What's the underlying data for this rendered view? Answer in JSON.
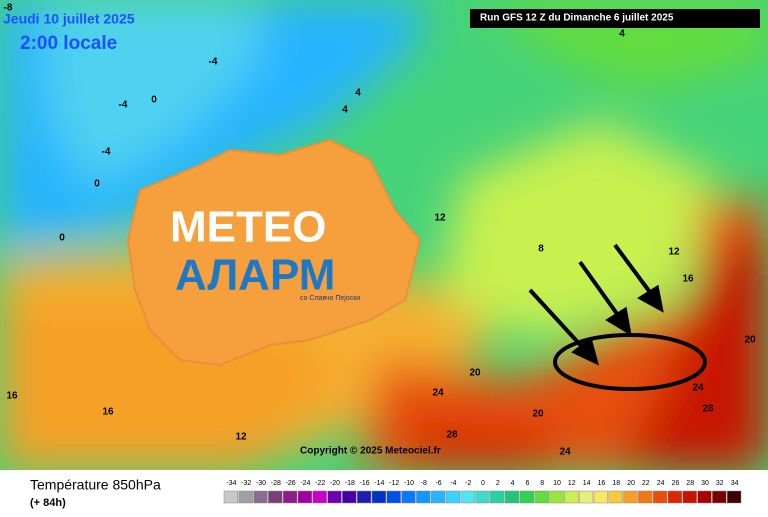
{
  "header": {
    "valid_date": "Jeudi 10 juillet 2025",
    "local_time": "2:00 locale",
    "run": "Run GFS 12 Z du Dimanche 6 juillet 2025"
  },
  "logo": {
    "line1": "METEO",
    "line2": "АЛАРМ",
    "tagline": "со Славчо Пејоски"
  },
  "copyright": "Copyright © 2025 Meteociel.fr",
  "legend": {
    "title": "Température 850hPa",
    "lead": "(+ 84h)",
    "ticks": [
      -34,
      -32,
      -30,
      -28,
      -26,
      -24,
      -22,
      -20,
      -18,
      -16,
      -14,
      -12,
      -10,
      -8,
      -6,
      -4,
      -2,
      0,
      2,
      4,
      6,
      8,
      10,
      12,
      14,
      16,
      18,
      20,
      22,
      24,
      26,
      28,
      30,
      32,
      34
    ],
    "colors": [
      "#c8c8c8",
      "#a0a0a0",
      "#8c6e8c",
      "#7a3c7a",
      "#8c1e8c",
      "#a000a0",
      "#c800c8",
      "#6e00b4",
      "#4600aa",
      "#1e1eb4",
      "#0032c8",
      "#0050e6",
      "#0a78ff",
      "#1496ff",
      "#28b4ff",
      "#3cd2ff",
      "#50e6f0",
      "#3cdcc8",
      "#28d2a0",
      "#1ec878",
      "#32d250",
      "#64dc3c",
      "#96e63c",
      "#c8f050",
      "#e6f078",
      "#fae664",
      "#fac83c",
      "#f5a028",
      "#f07814",
      "#e6500a",
      "#dc2800",
      "#c81400",
      "#aa0000",
      "#780000",
      "#3c0000"
    ]
  },
  "contour_labels": [
    -8,
    -4,
    -4,
    -4,
    0,
    0,
    0,
    4,
    4,
    4,
    12,
    12,
    8,
    16,
    16,
    20,
    20,
    20,
    24,
    24,
    24,
    28,
    28,
    12,
    16
  ]
}
